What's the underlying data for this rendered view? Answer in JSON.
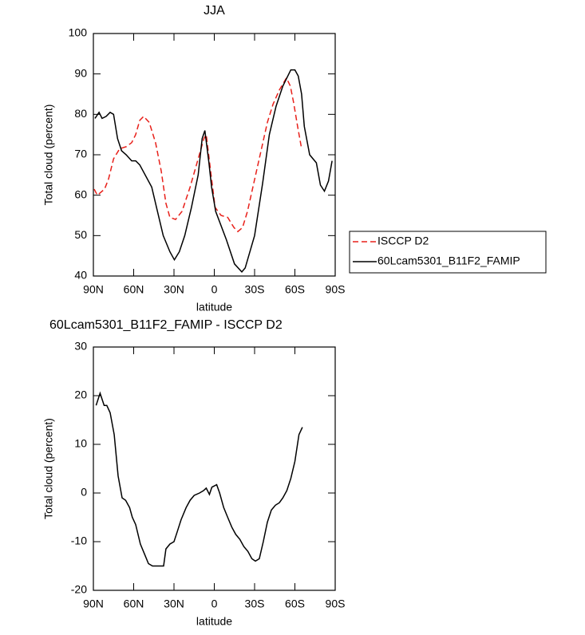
{
  "chart_data": [
    {
      "type": "line",
      "title": "JJA",
      "x_label": "latitude",
      "y_label": "Total cloud (percent)",
      "xlim": [
        90,
        -90
      ],
      "ylim": [
        40,
        100
      ],
      "xticks": [
        {
          "value": 90,
          "label": "90N"
        },
        {
          "value": 60,
          "label": "60N"
        },
        {
          "value": 30,
          "label": "30N"
        },
        0,
        {
          "value": -30,
          "label": "30S"
        },
        {
          "value": -60,
          "label": "60S"
        },
        {
          "value": -90,
          "label": "90S"
        }
      ],
      "yticks": [
        40,
        50,
        60,
        70,
        80,
        90,
        100
      ],
      "grid": false,
      "legend": "right",
      "series": [
        {
          "name": "ISCCP D2",
          "color": "#e8201a",
          "dashed": true,
          "x": [
            89.4,
            87,
            81.7,
            78.7,
            75,
            70.4,
            65.6,
            61.5,
            58.5,
            55.5,
            52.6,
            48.4,
            43.7,
            39.5,
            36,
            33,
            28.8,
            24,
            18,
            12,
            7.7,
            6,
            2.4,
            -0.6,
            -5,
            -10,
            -14.6,
            -17.5,
            -21,
            -24.7,
            -29.4,
            -34.8,
            -39.5,
            -43.7,
            -48.4,
            -53.7,
            -56.6,
            -59,
            -62,
            -65
          ],
          "values": [
            61.5,
            60,
            61.5,
            64,
            69,
            71.5,
            72,
            73,
            75,
            78.5,
            79.5,
            78,
            73,
            66,
            58,
            54.5,
            54,
            56,
            62,
            69,
            74,
            75,
            65,
            57,
            55,
            54.5,
            52,
            51,
            52,
            56,
            63,
            71,
            78,
            82.5,
            86,
            89,
            87,
            83,
            77,
            71.5
          ]
        },
        {
          "name": "60Lcam5301_B11F2_FAMIP",
          "color": "#000000",
          "dashed": false,
          "x": [
            88.8,
            85.8,
            83.5,
            80.5,
            77.5,
            75,
            72,
            69,
            65.6,
            61.5,
            58.5,
            55.5,
            46.6,
            43,
            38,
            33,
            29.7,
            26,
            22,
            17,
            12,
            9,
            7,
            4,
            2,
            -1,
            -9,
            -15,
            -20.5,
            -23,
            -30,
            -36,
            -41,
            -46,
            -51,
            -57,
            -60,
            -62.5,
            -65,
            -67,
            -71,
            -76,
            -79,
            -82,
            -85,
            -87.7
          ],
          "values": [
            79,
            80.5,
            79,
            79.5,
            80.5,
            80,
            74,
            71,
            70,
            68.5,
            68.5,
            67.5,
            62,
            57,
            50,
            46,
            44,
            46,
            50,
            57,
            65,
            74,
            76,
            68,
            62,
            56,
            49,
            43,
            41,
            42,
            50,
            63,
            75,
            82,
            87,
            91,
            91,
            89.5,
            85,
            77,
            70,
            68,
            62.5,
            61,
            63.5,
            68.5
          ]
        }
      ]
    },
    {
      "type": "line",
      "title": "60Lcam5301_B11F2_FAMIP - ISCCP D2",
      "x_label": "latitude",
      "y_label": "Total cloud (percent)",
      "xlim": [
        90,
        -90
      ],
      "ylim": [
        -20,
        30
      ],
      "xticks": [
        {
          "value": 90,
          "label": "90N"
        },
        {
          "value": 60,
          "label": "60N"
        },
        {
          "value": 30,
          "label": "30N"
        },
        0,
        {
          "value": -30,
          "label": "30S"
        },
        {
          "value": -60,
          "label": "60S"
        },
        {
          "value": -90,
          "label": "90S"
        }
      ],
      "yticks": [
        -20,
        -10,
        0,
        10,
        20,
        30
      ],
      "grid": false,
      "series": [
        {
          "color": "#000000",
          "dashed": false,
          "x": [
            88,
            85,
            82,
            80,
            77.5,
            74.5,
            71.6,
            68.6,
            66,
            63,
            61,
            58.5,
            55,
            52,
            49,
            46,
            43,
            37.7,
            36,
            33,
            30,
            27.6,
            24.7,
            21,
            18,
            15,
            11,
            8,
            6,
            3.6,
            1.8,
            -1.8,
            -4,
            -7,
            -10,
            -13,
            -16,
            -19,
            -22,
            -25,
            -28,
            -30.6,
            -33.5,
            -36.5,
            -39.5,
            -42.5,
            -45.5,
            -48.4,
            -51,
            -54,
            -57,
            -60,
            -63,
            -65.6
          ],
          "values": [
            18,
            20.5,
            18,
            18,
            16.5,
            12,
            3.5,
            -1,
            -1.5,
            -3,
            -5,
            -6.5,
            -10.5,
            -12.5,
            -14.5,
            -15,
            -15,
            -15,
            -11.5,
            -10.5,
            -10,
            -8,
            -5.5,
            -3,
            -1.5,
            -0.5,
            0,
            0.5,
            1,
            -0.3,
            1.2,
            1.7,
            0,
            -3,
            -5,
            -7,
            -8.5,
            -9.5,
            -11,
            -12,
            -13.5,
            -14,
            -13.5,
            -10,
            -6,
            -3.5,
            -2.5,
            -2,
            -1,
            0.5,
            3,
            6.5,
            12,
            13.5
          ]
        }
      ]
    }
  ]
}
